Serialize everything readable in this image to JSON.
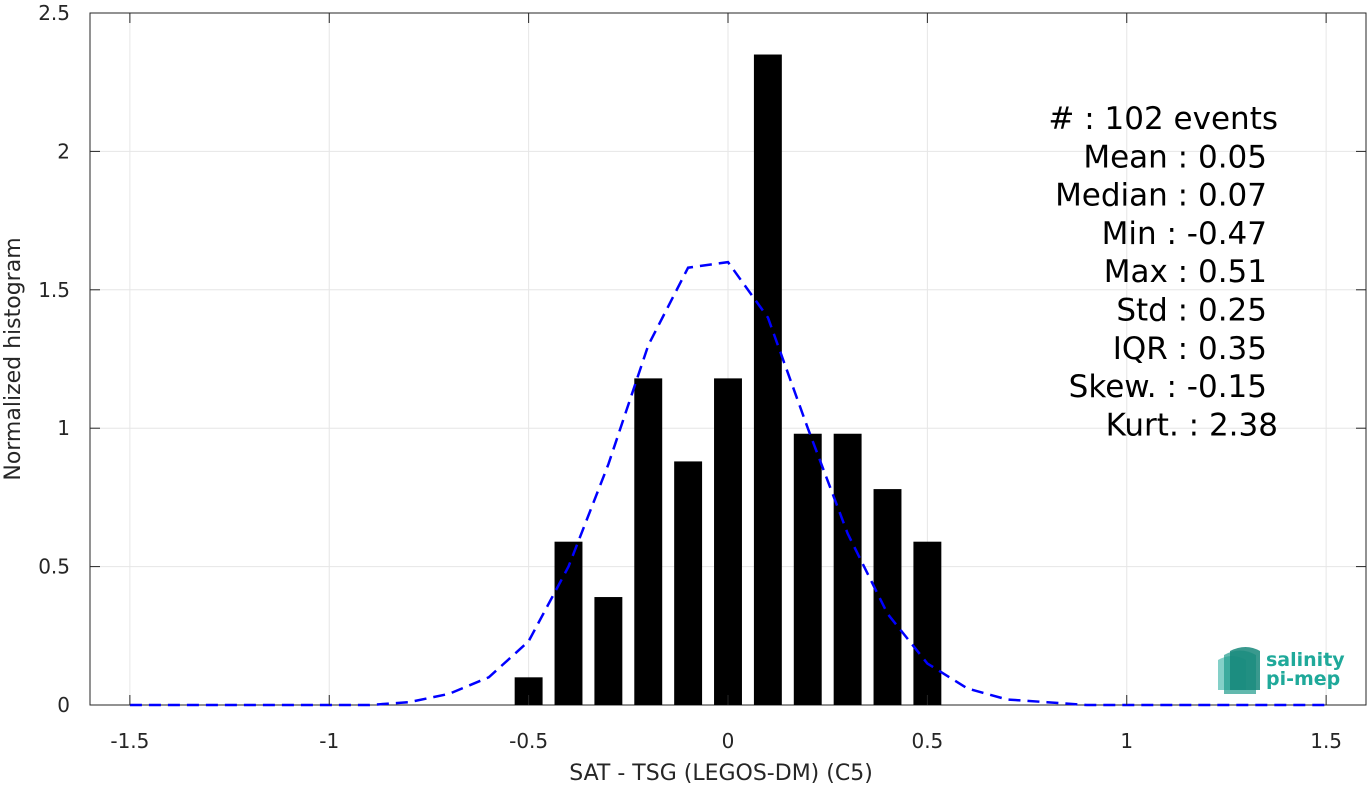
{
  "chart_data": {
    "type": "bar",
    "xlabel": "SAT - TSG (LEGOS-DM) (C5)",
    "ylabel": "Normalized histogram",
    "xlim": [
      -1.6,
      1.6
    ],
    "ylim": [
      0,
      2.5
    ],
    "xticks": [
      -1.5,
      -1,
      -0.5,
      0,
      0.5,
      1,
      1.5
    ],
    "xtick_labels": [
      "-1.5",
      "-1",
      "-0.5",
      "0",
      "0.5",
      "1",
      "1.5"
    ],
    "yticks": [
      0,
      0.5,
      1,
      1.5,
      2,
      2.5
    ],
    "ytick_labels": [
      "0",
      "0.5",
      "1",
      "1.5",
      "2",
      "2.5"
    ],
    "grid": true,
    "bar_width": 0.07,
    "bars": {
      "x": [
        -0.5,
        -0.4,
        -0.3,
        -0.2,
        -0.1,
        0.0,
        0.1,
        0.2,
        0.3,
        0.4,
        0.5
      ],
      "values": [
        0.1,
        0.59,
        0.39,
        1.18,
        0.88,
        1.18,
        2.35,
        0.98,
        0.98,
        0.78,
        0.59
      ],
      "color": "#000000"
    },
    "fit_curve": {
      "style": "dashed",
      "color": "#0000ff",
      "x": [
        -1.5,
        -1.4,
        -1.3,
        -1.2,
        -1.1,
        -1.0,
        -0.9,
        -0.8,
        -0.7,
        -0.6,
        -0.5,
        -0.4,
        -0.3,
        -0.2,
        -0.1,
        0.0,
        0.1,
        0.2,
        0.3,
        0.4,
        0.5,
        0.6,
        0.7,
        0.8,
        0.9,
        1.0,
        1.1,
        1.2,
        1.3,
        1.4,
        1.5
      ],
      "y": [
        0,
        0,
        0,
        0,
        0,
        0,
        0,
        0.01,
        0.04,
        0.1,
        0.23,
        0.5,
        0.87,
        1.3,
        1.58,
        1.6,
        1.4,
        1.0,
        0.62,
        0.33,
        0.15,
        0.06,
        0.02,
        0.01,
        0,
        0,
        0,
        0,
        0,
        0,
        0
      ]
    },
    "stats": [
      {
        "label": "#  : 102 events",
        "indent": 1
      },
      {
        "label": "Mean : 0.05",
        "indent": 0
      },
      {
        "label": "Median : 0.07",
        "indent": 0
      },
      {
        "label": "Min : -0.47",
        "indent": 0
      },
      {
        "label": "Max : 0.51",
        "indent": 0
      },
      {
        "label": "Std : 0.25",
        "indent": 0
      },
      {
        "label": "IQR : 0.35",
        "indent": 0
      },
      {
        "label": "Skew. : -0.15",
        "indent": 0
      },
      {
        "label": "Kurt. : 2.38",
        "indent": 1
      }
    ]
  },
  "logo": {
    "line1": "salinity",
    "line2": "pi-mep",
    "color": "#1fa99a"
  }
}
